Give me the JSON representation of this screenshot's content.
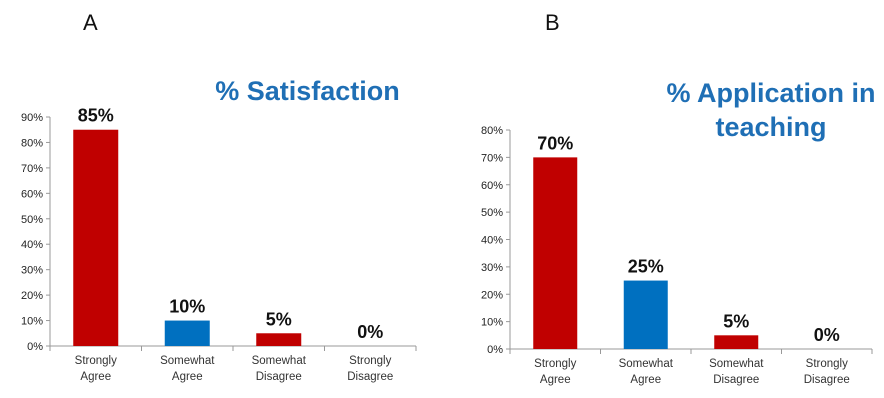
{
  "chart_data": [
    {
      "type": "bar",
      "panel_label": "A",
      "title": "% Satisfaction",
      "categories": [
        "Strongly Agree",
        "Somewhat Agree",
        "Somewhat Disagree",
        "Strongly Disagree"
      ],
      "category_lines": [
        [
          "Strongly",
          "Agree"
        ],
        [
          "Somewhat",
          "Agree"
        ],
        [
          "Somewhat",
          "Disagree"
        ],
        [
          "Strongly",
          "Disagree"
        ]
      ],
      "values": [
        85,
        10,
        5,
        0
      ],
      "data_labels": [
        "85%",
        "10%",
        "5%",
        "0%"
      ],
      "bar_colors": [
        "#c00000",
        "#0070c0",
        "#c00000",
        "#c00000"
      ],
      "ylim": [
        0,
        90
      ],
      "yticks": [
        "0%",
        "10%",
        "20%",
        "30%",
        "40%",
        "50%",
        "60%",
        "70%",
        "80%",
        "90%"
      ],
      "xlabel": "",
      "ylabel": "",
      "grid": false,
      "legend": "none"
    },
    {
      "type": "bar",
      "panel_label": "B",
      "title": "% Application in teaching",
      "title_lines": [
        "% Application in",
        "teaching"
      ],
      "categories": [
        "Strongly Agree",
        "Somewhat Agree",
        "Somewhat Disagree",
        "Strongly Disagree"
      ],
      "category_lines": [
        [
          "Strongly",
          "Agree"
        ],
        [
          "Somewhat",
          "Agree"
        ],
        [
          "Somewhat",
          "Disagree"
        ],
        [
          "Strongly",
          "Disagree"
        ]
      ],
      "values": [
        70,
        25,
        5,
        0
      ],
      "data_labels": [
        "70%",
        "25%",
        "5%",
        "0%"
      ],
      "bar_colors": [
        "#c00000",
        "#0070c0",
        "#c00000",
        "#c00000"
      ],
      "ylim": [
        0,
        80
      ],
      "yticks": [
        "0%",
        "10%",
        "20%",
        "30%",
        "40%",
        "50%",
        "60%",
        "70%",
        "80%"
      ],
      "xlabel": "",
      "ylabel": "",
      "grid": false,
      "legend": "none"
    }
  ]
}
